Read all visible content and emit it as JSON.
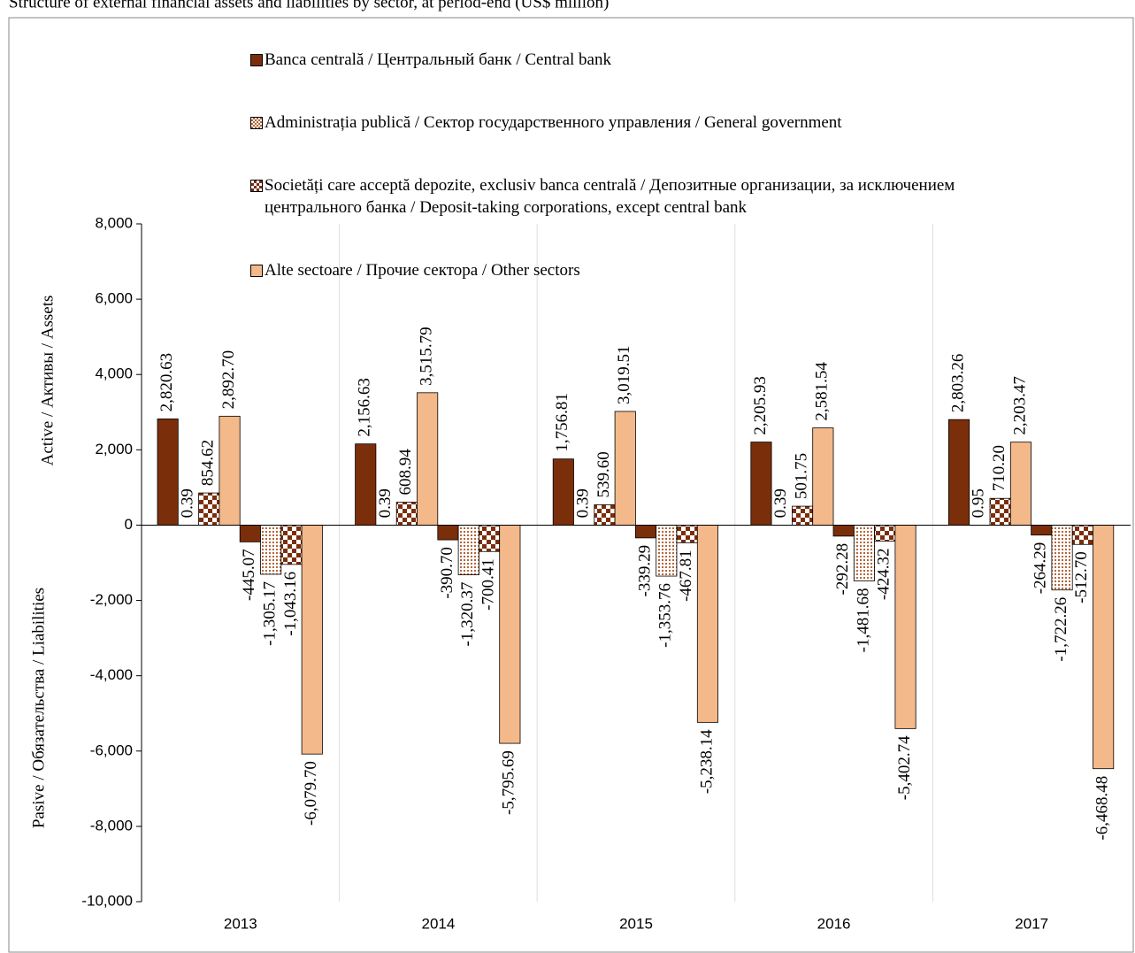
{
  "chart_data": {
    "type": "bar",
    "title": "Structure of external financial assets and liabilities by sector, at period-end (US$ million)",
    "ylabel_top": "Active / Активы / Assets",
    "ylabel_bottom": "Pasive / Обязательства / Liabilities",
    "categories": [
      "2013",
      "2014",
      "2015",
      "2016",
      "2017"
    ],
    "series": [
      {
        "name": "Banca centrală / Центральный банк / Central bank",
        "color": "#7b2e0a",
        "pattern": "solid",
        "values": [
          2820.63,
          2156.63,
          1756.81,
          2205.93,
          2803.26
        ],
        "value_labels": [
          "2,820.63",
          "2,156.63",
          "1,756.81",
          "2,205.93",
          "2,803.26"
        ],
        "liabilities": [
          -445.07,
          -390.7,
          -339.29,
          -292.28,
          -264.29
        ],
        "liability_labels": [
          "-445.07",
          "-390.70",
          "-339.29",
          "-292.28",
          "-264.29"
        ]
      },
      {
        "name": "Administrația publică / Сектор государственного управления / General government",
        "color": "#7b2e0a",
        "pattern": "dots",
        "values": [
          0.39,
          0.39,
          0.39,
          0.39,
          0.95
        ],
        "value_labels": [
          "0.39",
          "0.39",
          "0.39",
          "0.39",
          "0.95"
        ],
        "liabilities": [
          -1305.17,
          -1320.37,
          -1353.76,
          -1481.68,
          -1722.26
        ],
        "liability_labels": [
          "-1,305.17",
          "-1,320.37",
          "-1,353.76",
          "-1,481.68",
          "-1,722.26"
        ]
      },
      {
        "name": "Societăți care acceptă depozite, exclusiv banca centrală / Депозитные организации, за исключением центрального банка / Deposit-taking corporations, except central bank",
        "color": "#7b2e0a",
        "pattern": "checker",
        "values": [
          854.62,
          608.94,
          539.6,
          501.75,
          710.2
        ],
        "value_labels": [
          "854.62",
          "608.94",
          "539.60",
          "501.75",
          "710.20"
        ],
        "liabilities": [
          -1043.16,
          -700.41,
          -467.81,
          -424.32,
          -512.7
        ],
        "liability_labels": [
          "-1,043.16",
          "-700.41",
          "-467.81",
          "-424.32",
          "-512.70"
        ]
      },
      {
        "name": "Alte sectoare / Прочие сектора / Other sectors",
        "color": "#f4b98a",
        "pattern": "solid",
        "values": [
          2892.7,
          3515.79,
          3019.51,
          2581.54,
          2203.47
        ],
        "value_labels": [
          "2,892.70",
          "3,515.79",
          "3,019.51",
          "2,581.54",
          "2,203.47"
        ],
        "liabilities": [
          -6079.7,
          -5795.69,
          -5238.14,
          -5402.74,
          -6468.48
        ],
        "liability_labels": [
          "-6,079.70",
          "-5,795.69",
          "-5,238.14",
          "-5,402.74",
          "-6,468.48"
        ]
      }
    ],
    "ylim": [
      -10000,
      8000
    ],
    "yticks": [
      {
        "value": -10000,
        "label": "-10,000"
      },
      {
        "value": -8000,
        "label": "-8,000"
      },
      {
        "value": -6000,
        "label": "-6,000"
      },
      {
        "value": -4000,
        "label": "-4,000"
      },
      {
        "value": -2000,
        "label": "-2,000"
      },
      0,
      {
        "value": 2000,
        "label": "2,000"
      },
      {
        "value": 4000,
        "label": "4,000"
      },
      {
        "value": 6000,
        "label": "6,000"
      },
      {
        "value": 8000,
        "label": "8,000"
      }
    ],
    "grid": false
  }
}
